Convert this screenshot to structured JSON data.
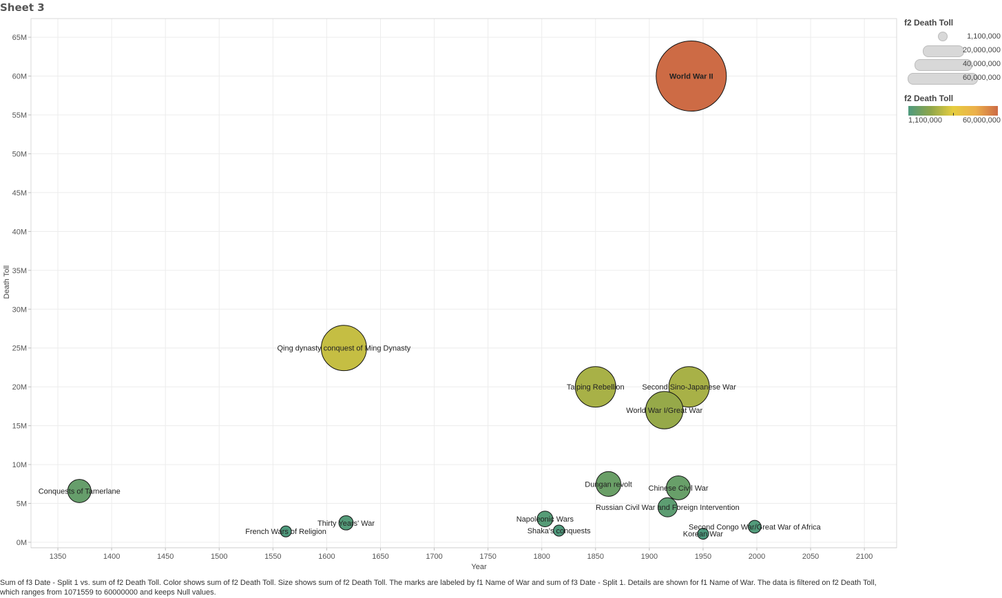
{
  "sheet_title": "Sheet 3",
  "caption": "Sum of f3 Date - Split 1 vs. sum of f2 Death Toll.  Color shows sum of f2 Death Toll.  Size shows sum of f2 Death Toll.  The marks are labeled by f1 Name of War and sum of f3 Date - Split 1.  Details are shown for f1 Name of War. The data is filtered on f2 Death Toll, which ranges from 1071559 to 60000000 and keeps Null values.",
  "legend": {
    "size_title": "f2 Death Toll",
    "size_entries": [
      "1,100,000",
      "20,000,000",
      "40,000,000",
      "60,000,000"
    ],
    "color_title": "f2 Death Toll",
    "color_min_label": "1,100,000",
    "color_max_label": "60,000,000",
    "color_stops": [
      "#4e9a7e",
      "#8fa64a",
      "#e6cd3f",
      "#ecb04a",
      "#cd6b45"
    ]
  },
  "chart_data": {
    "type": "scatter",
    "title": "Sheet 3",
    "xlabel": "Year",
    "ylabel": "Death Toll",
    "xlim": [
      1325,
      2130
    ],
    "ylim": [
      0,
      67400000
    ],
    "xticks": [
      1350,
      1400,
      1450,
      1500,
      1550,
      1600,
      1650,
      1700,
      1750,
      1800,
      1850,
      1900,
      1950,
      2000,
      2050,
      2100
    ],
    "yticks": [
      0,
      5000000,
      10000000,
      15000000,
      20000000,
      25000000,
      30000000,
      35000000,
      40000000,
      45000000,
      50000000,
      55000000,
      60000000,
      65000000
    ],
    "ytick_labels": [
      "0M",
      "5M",
      "10M",
      "15M",
      "20M",
      "25M",
      "30M",
      "35M",
      "40M",
      "45M",
      "50M",
      "55M",
      "60M",
      "65M"
    ],
    "grid": true,
    "size_encodes": "death_toll",
    "color_encodes": "death_toll",
    "color_range": [
      1100000,
      60000000
    ],
    "points": [
      {
        "name": "World War II",
        "year": 1939,
        "death_toll": 60000000
      },
      {
        "name": "Qing dynasty conquest of Ming Dynasty",
        "year": 1616,
        "death_toll": 25000000
      },
      {
        "name": "Taiping Rebellion",
        "year": 1850,
        "death_toll": 20000000
      },
      {
        "name": "Second Sino-Japanese War",
        "year": 1937,
        "death_toll": 20000000
      },
      {
        "name": "World War I/Great War",
        "year": 1914,
        "death_toll": 17000000
      },
      {
        "name": "Dungan revolt",
        "year": 1862,
        "death_toll": 7500000
      },
      {
        "name": "Chinese Civil War",
        "year": 1927,
        "death_toll": 7000000
      },
      {
        "name": "Russian Civil War and Foreign Intervention",
        "year": 1917,
        "death_toll": 4500000
      },
      {
        "name": "Conquests of Tamerlane",
        "year": 1370,
        "death_toll": 6600000
      },
      {
        "name": "Napoleonic Wars",
        "year": 1803,
        "death_toll": 3000000
      },
      {
        "name": "Shaka's conquests",
        "year": 1816,
        "death_toll": 1500000
      },
      {
        "name": "Thirty Years' War",
        "year": 1618,
        "death_toll": 2500000
      },
      {
        "name": "French Wars of Religion",
        "year": 1562,
        "death_toll": 1400000
      },
      {
        "name": "Second Congo War/Great War of Africa",
        "year": 1998,
        "death_toll": 2000000
      },
      {
        "name": "Korean War",
        "year": 1950,
        "death_toll": 1100000
      }
    ]
  }
}
